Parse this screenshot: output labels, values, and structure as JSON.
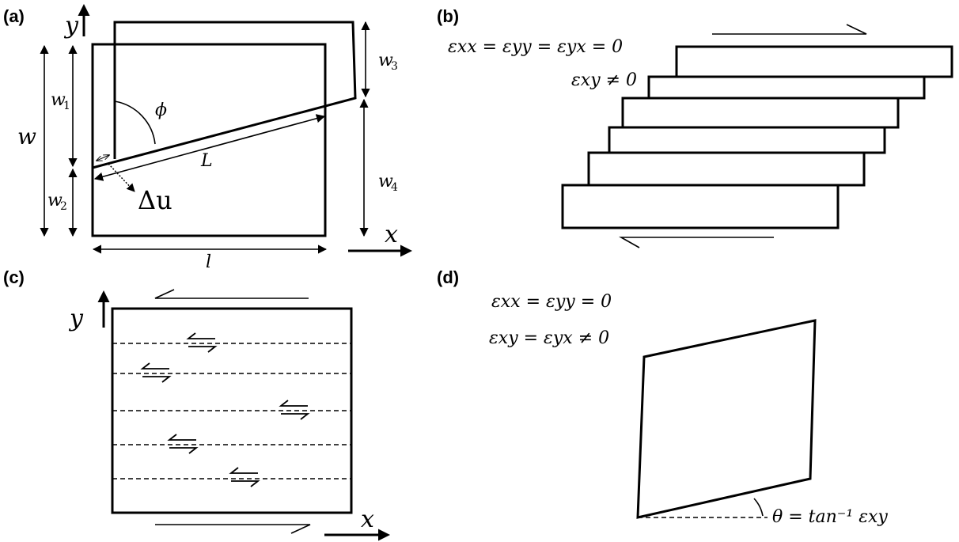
{
  "panels": {
    "a": {
      "label": "(a)",
      "y_axis": "y",
      "x_axis": "x",
      "w": "w",
      "w1": "w",
      "w1_sub": "1",
      "w2": "w",
      "w2_sub": "2",
      "w3": "w",
      "w3_sub": "3",
      "w4": "w",
      "w4_sub": "4",
      "phi": "ϕ",
      "L": "L",
      "l": "l",
      "delta_u": "Δu"
    },
    "b": {
      "label": "(b)",
      "eq1": "εxx = εyy = εyx = 0",
      "eq2": "εxy ≠ 0"
    },
    "c": {
      "label": "(c)",
      "y_axis": "y",
      "x_axis": "x"
    },
    "d": {
      "label": "(d)",
      "eq1": "εxx = εyy = 0",
      "eq2": "εxy = εyx ≠ 0",
      "theta_eq": "θ = tan⁻¹ εxy"
    }
  },
  "colors": {
    "line": "#000000",
    "background": "#ffffff"
  }
}
